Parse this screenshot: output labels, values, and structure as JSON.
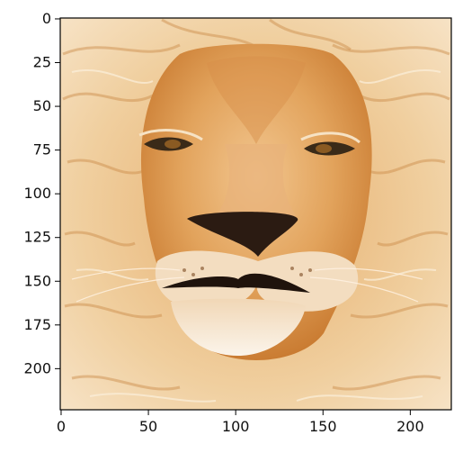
{
  "image": {
    "subject": "lion-face",
    "description_icon": "lion-face-image",
    "pixel_extent": {
      "width": 224,
      "height": 224
    }
  },
  "axes": {
    "x_ticks": [
      "0",
      "50",
      "100",
      "150",
      "200"
    ],
    "y_ticks": [
      "0",
      "25",
      "50",
      "75",
      "100",
      "125",
      "150",
      "175",
      "200"
    ]
  },
  "colors": {
    "mane_light": "#f3dcb6",
    "mane_mid": "#e3a866",
    "mane_dark": "#c7772f",
    "muzzle": "#f7eadb",
    "nose": "#2b1b12",
    "eye": "#3a2a18",
    "axis": "#000000"
  }
}
